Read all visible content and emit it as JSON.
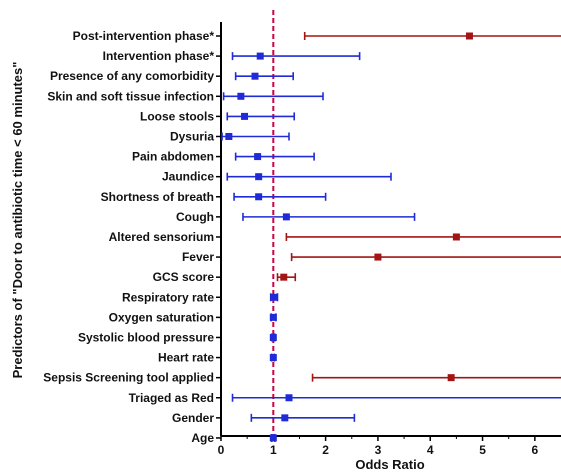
{
  "chart_data": {
    "type": "scatter",
    "title": "",
    "xlabel": "Odds Ratio",
    "ylabel": "Predictors of \"Door to antibiotic time < 60 minutes\"",
    "xlim": [
      0,
      6.5
    ],
    "xticks": [
      "0",
      "1",
      "2",
      "3",
      "4",
      "5",
      "6"
    ],
    "reference_line_x": 1,
    "colors": {
      "significant": "#a31515",
      "nonsignificant": "#1f2bd6",
      "reference": "#cc0044"
    },
    "points": [
      {
        "label": "Post-intervention phase*",
        "or": 4.75,
        "low": 1.6,
        "high": 6.5,
        "significant": true
      },
      {
        "label": "Intervention phase*",
        "or": 0.75,
        "low": 0.22,
        "high": 2.65,
        "significant": false
      },
      {
        "label": "Presence of any comorbidity",
        "or": 0.65,
        "low": 0.28,
        "high": 1.38,
        "significant": false
      },
      {
        "label": "Skin and soft tissue infection",
        "or": 0.38,
        "low": 0.05,
        "high": 1.95,
        "significant": false
      },
      {
        "label": "Loose stools",
        "or": 0.45,
        "low": 0.12,
        "high": 1.4,
        "significant": false
      },
      {
        "label": "Dysuria",
        "or": 0.15,
        "low": 0.02,
        "high": 1.3,
        "significant": false
      },
      {
        "label": "Pain abdomen",
        "or": 0.7,
        "low": 0.28,
        "high": 1.78,
        "significant": false
      },
      {
        "label": "Jaundice",
        "or": 0.72,
        "low": 0.12,
        "high": 3.25,
        "significant": false
      },
      {
        "label": "Shortness of breath",
        "or": 0.72,
        "low": 0.25,
        "high": 2.0,
        "significant": false
      },
      {
        "label": "Cough",
        "or": 1.25,
        "low": 0.42,
        "high": 3.7,
        "significant": false
      },
      {
        "label": "Altered sensorium",
        "or": 4.5,
        "low": 1.25,
        "high": 6.5,
        "significant": true
      },
      {
        "label": "Fever",
        "or": 3.0,
        "low": 1.35,
        "high": 6.5,
        "significant": true
      },
      {
        "label": "GCS score",
        "or": 1.2,
        "low": 1.08,
        "high": 1.42,
        "significant": true
      },
      {
        "label": "Respiratory rate",
        "or": 1.02,
        "low": 0.95,
        "high": 1.08,
        "significant": false
      },
      {
        "label": "Oxygen saturation",
        "or": 1.0,
        "low": 0.96,
        "high": 1.05,
        "significant": false
      },
      {
        "label": "Systolic blood pressure",
        "or": 1.0,
        "low": 0.97,
        "high": 1.03,
        "significant": false
      },
      {
        "label": "Heart rate",
        "or": 1.0,
        "low": 0.97,
        "high": 1.02,
        "significant": false
      },
      {
        "label": "Sepsis Screening tool applied",
        "or": 4.4,
        "low": 1.75,
        "high": 6.5,
        "significant": true
      },
      {
        "label": "Triaged as Red",
        "or": 1.3,
        "low": 0.22,
        "high": 6.5,
        "significant": false
      },
      {
        "label": "Gender",
        "or": 1.22,
        "low": 0.58,
        "high": 2.55,
        "significant": false
      },
      {
        "label": "Age",
        "or": 1.0,
        "low": 0.97,
        "high": 1.03,
        "significant": false
      }
    ]
  }
}
